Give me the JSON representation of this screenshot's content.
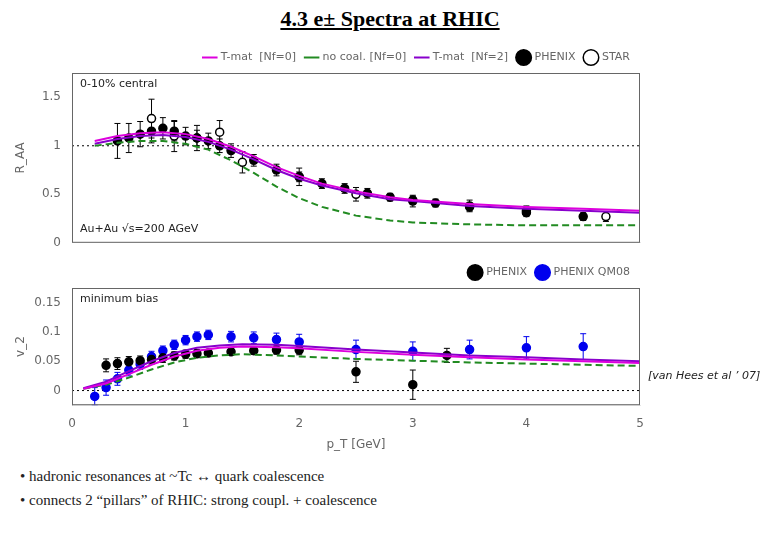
{
  "chart_data": [
    {
      "type": "line",
      "title": "4.3 e± Spectra at RHIC",
      "y_label": "R_AA",
      "xlim": [
        0,
        5
      ],
      "ylim": [
        0,
        1.75
      ],
      "xticks": [
        0,
        1,
        2,
        3,
        4,
        5
      ],
      "yticks": [
        0,
        0.5,
        1.0,
        1.5
      ],
      "tick_labels": "y",
      "grid": false,
      "legend": "upper right",
      "hline": 1.0,
      "annotations": [
        "0-10% central",
        "Au+Au √s=200 AGeV"
      ],
      "series": [
        {
          "name": "T-mat  [Nf=0]",
          "type": "line",
          "color": "#dd00dd",
          "x": [
            0.2,
            0.4,
            0.6,
            0.8,
            1.0,
            1.2,
            1.4,
            1.6,
            1.8,
            2.0,
            2.2,
            2.5,
            2.8,
            3.0,
            3.5,
            4.0,
            4.5,
            5.0
          ],
          "values": [
            1.05,
            1.1,
            1.13,
            1.14,
            1.12,
            1.07,
            0.99,
            0.89,
            0.78,
            0.69,
            0.61,
            0.53,
            0.47,
            0.44,
            0.4,
            0.37,
            0.35,
            0.33
          ]
        },
        {
          "name": "no coal. [Nf=0]",
          "type": "line",
          "color": "#228B22",
          "line_style": "dashed",
          "x": [
            0.2,
            0.4,
            0.6,
            0.8,
            1.0,
            1.2,
            1.4,
            1.6,
            1.8,
            2.0,
            2.2,
            2.5,
            2.8,
            3.0,
            3.5,
            4.0,
            4.5,
            5.0
          ],
          "values": [
            1.0,
            1.03,
            1.05,
            1.05,
            1.02,
            0.96,
            0.85,
            0.72,
            0.58,
            0.46,
            0.37,
            0.28,
            0.23,
            0.21,
            0.19,
            0.18,
            0.18,
            0.18
          ]
        },
        {
          "name": "T-mat  [Nf=2]",
          "type": "line",
          "color": "#8800cc",
          "x": [
            0.2,
            0.4,
            0.6,
            0.8,
            1.0,
            1.2,
            1.4,
            1.6,
            1.8,
            2.0,
            2.2,
            2.5,
            2.8,
            3.0,
            3.5,
            4.0,
            4.5,
            5.0
          ],
          "values": [
            1.02,
            1.07,
            1.1,
            1.11,
            1.09,
            1.04,
            0.96,
            0.86,
            0.75,
            0.66,
            0.59,
            0.51,
            0.45,
            0.43,
            0.38,
            0.35,
            0.33,
            0.31
          ]
        },
        {
          "name": "PHENIX",
          "type": "scatter",
          "marker": "circle",
          "color": "#000000",
          "x": [
            0.4,
            0.5,
            0.6,
            0.7,
            0.8,
            0.9,
            1.0,
            1.1,
            1.2,
            1.3,
            1.4,
            1.6,
            1.8,
            2.0,
            2.2,
            2.4,
            2.6,
            2.8,
            3.0,
            3.2,
            3.5,
            4.0,
            4.5
          ],
          "values": [
            1.05,
            1.08,
            1.12,
            1.15,
            1.18,
            1.15,
            1.1,
            1.08,
            1.05,
            1.0,
            0.95,
            0.85,
            0.75,
            0.68,
            0.61,
            0.56,
            0.51,
            0.47,
            0.44,
            0.41,
            0.37,
            0.31,
            0.27
          ],
          "yerr": [
            0.18,
            0.15,
            0.13,
            0.12,
            0.11,
            0.1,
            0.09,
            0.08,
            0.08,
            0.07,
            0.07,
            0.06,
            0.06,
            0.05,
            0.05,
            0.05,
            0.05,
            0.04,
            0.04,
            0.04,
            0.04,
            0.04,
            0.04
          ]
        },
        {
          "name": "STAR",
          "type": "scatter",
          "marker": "circle_open",
          "color": "#000000",
          "x": [
            0.7,
            0.9,
            1.1,
            1.3,
            1.5,
            2.0,
            2.5,
            3.0,
            3.5,
            4.0,
            4.7
          ],
          "values": [
            1.28,
            1.1,
            1.08,
            1.14,
            0.83,
            0.68,
            0.5,
            0.43,
            0.38,
            0.33,
            0.27
          ],
          "yerr": [
            0.2,
            0.16,
            0.13,
            0.12,
            0.11,
            0.09,
            0.07,
            0.06,
            0.06,
            0.05,
            0.05
          ]
        }
      ]
    },
    {
      "type": "line",
      "x_label": "p_T [GeV]",
      "y_label": "v_2",
      "xlim": [
        0,
        5
      ],
      "ylim": [
        -0.025,
        0.175
      ],
      "xticks": [
        0,
        1,
        2,
        3,
        4,
        5
      ],
      "yticks": [
        0,
        0.05,
        0.1,
        0.15
      ],
      "grid": false,
      "legend": "upper right",
      "hline": 0.0,
      "annotations": [
        "minimum bias",
        "[van Hees et al ’ 07]",
        "• hadronic resonances at ~Tc ↔  quark coalescence",
        "• connects 2 “pillars” of RHIC: strong coupl. + coalescence"
      ],
      "series": [
        {
          "type": "line",
          "color": "#dd00dd",
          "x": [
            0.1,
            0.3,
            0.5,
            0.7,
            0.9,
            1.1,
            1.3,
            1.5,
            1.8,
            2.0,
            2.5,
            3.0,
            3.5,
            4.0,
            4.5,
            5.0
          ],
          "values": [
            0.003,
            0.012,
            0.028,
            0.044,
            0.058,
            0.068,
            0.073,
            0.075,
            0.074,
            0.072,
            0.066,
            0.061,
            0.057,
            0.053,
            0.05,
            0.047
          ]
        },
        {
          "type": "line",
          "color": "#8800cc",
          "x": [
            0.1,
            0.3,
            0.5,
            0.7,
            0.9,
            1.1,
            1.3,
            1.5,
            1.8,
            2.0,
            2.5,
            3.0,
            3.5,
            4.0,
            4.5,
            5.0
          ],
          "values": [
            0.004,
            0.015,
            0.033,
            0.05,
            0.064,
            0.073,
            0.077,
            0.079,
            0.078,
            0.076,
            0.07,
            0.065,
            0.06,
            0.057,
            0.053,
            0.05
          ]
        },
        {
          "type": "line",
          "color": "#228B22",
          "line_style": "dashed",
          "x": [
            0.1,
            0.3,
            0.5,
            0.7,
            0.9,
            1.1,
            1.3,
            1.5,
            1.8,
            2.0,
            2.5,
            3.0,
            3.5,
            4.0,
            4.5,
            5.0
          ],
          "values": [
            0.003,
            0.01,
            0.022,
            0.036,
            0.048,
            0.056,
            0.06,
            0.062,
            0.06,
            0.058,
            0.054,
            0.051,
            0.048,
            0.046,
            0.044,
            0.042
          ]
        },
        {
          "name": "PHENIX",
          "type": "scatter",
          "marker": "circle",
          "color": "#000000",
          "x": [
            0.3,
            0.4,
            0.5,
            0.6,
            0.7,
            0.8,
            0.9,
            1.0,
            1.1,
            1.2,
            1.4,
            1.6,
            1.8,
            2.0,
            2.5,
            3.0,
            3.3
          ],
          "values": [
            0.043,
            0.046,
            0.049,
            0.051,
            0.053,
            0.056,
            0.059,
            0.062,
            0.063,
            0.064,
            0.066,
            0.068,
            0.069,
            0.069,
            0.032,
            0.01,
            0.06
          ],
          "yerr": [
            0.011,
            0.01,
            0.009,
            0.008,
            0.008,
            0.008,
            0.007,
            0.007,
            0.007,
            0.006,
            0.006,
            0.006,
            0.007,
            0.008,
            0.018,
            0.025,
            0.012
          ]
        },
        {
          "name": "PHENIX QM08",
          "type": "scatter",
          "marker": "circle",
          "color": "#0000ee",
          "x": [
            0.2,
            0.3,
            0.4,
            0.5,
            0.6,
            0.7,
            0.8,
            0.9,
            1.0,
            1.1,
            1.2,
            1.4,
            1.6,
            1.8,
            2.0,
            2.5,
            3.0,
            3.5,
            4.0,
            4.5
          ],
          "values": [
            -0.01,
            0.005,
            0.02,
            0.035,
            0.045,
            0.058,
            0.068,
            0.078,
            0.086,
            0.092,
            0.095,
            0.092,
            0.09,
            0.087,
            0.083,
            0.07,
            0.067,
            0.07,
            0.073,
            0.075
          ],
          "yerr": [
            0.015,
            0.013,
            0.011,
            0.01,
            0.009,
            0.009,
            0.008,
            0.008,
            0.008,
            0.008,
            0.008,
            0.009,
            0.01,
            0.011,
            0.013,
            0.016,
            0.016,
            0.016,
            0.019,
            0.022
          ]
        }
      ]
    }
  ]
}
